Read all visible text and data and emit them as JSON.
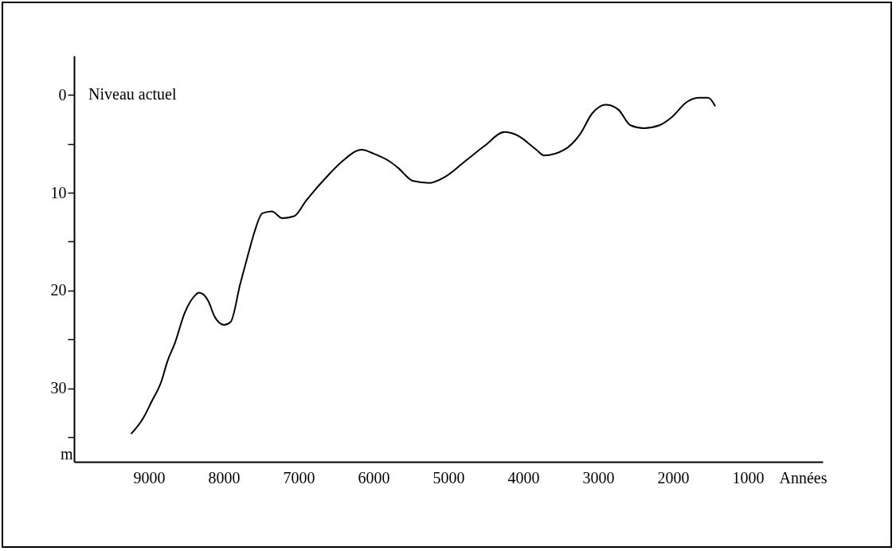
{
  "chart_data": {
    "type": "line",
    "xlabel": "Années",
    "ylabel": "m",
    "annotations": [
      "Niveau actuel"
    ],
    "x": [
      9233,
      9074,
      8968,
      8830,
      8756,
      8650,
      8523,
      8385,
      8332,
      8205,
      8120,
      7995,
      7908,
      7780,
      7675,
      7590,
      7485,
      7357,
      7220,
      7060,
      6900,
      6580,
      6420,
      6157,
      6000,
      5785,
      5680,
      5470,
      5260,
      5050,
      4780,
      4515,
      4250,
      4090,
      3826,
      3720,
      3450,
      3240,
      3080,
      2900,
      2730,
      2570,
      2390,
      2180,
      2020,
      1810,
      1650,
      1530,
      1440
    ],
    "series": [
      {
        "color": "#000000",
        "values": [
          34.6,
          33.0,
          31.4,
          29.2,
          27.3,
          25.3,
          22.3,
          20.5,
          20.2,
          21.1,
          22.7,
          23.5,
          23.2,
          19.3,
          16.3,
          14.0,
          12.1,
          11.9,
          12.6,
          12.4,
          10.8,
          8.0,
          6.8,
          5.6,
          6.0,
          6.8,
          7.4,
          8.8,
          9.0,
          8.4,
          6.8,
          5.2,
          3.8,
          4.1,
          5.6,
          6.2,
          5.6,
          4.0,
          1.9,
          1.0,
          1.5,
          3.1,
          3.4,
          3.1,
          2.3,
          0.7,
          0.3,
          0.3,
          1.1
        ]
      }
    ],
    "xlim": [
      10000,
      0
    ],
    "xticks": [
      9000,
      8000,
      7000,
      6000,
      5000,
      4000,
      3000,
      2000,
      1000
    ],
    "ylim": [
      37.5,
      -4
    ],
    "yticks": [
      0,
      {
        "value": 5,
        "label": null
      },
      10,
      {
        "value": 15,
        "label": null
      },
      20,
      {
        "value": 25,
        "label": null
      },
      30,
      {
        "value": 35,
        "label": null
      }
    ],
    "grid": false,
    "marker": "none",
    "line_style": "solid"
  }
}
